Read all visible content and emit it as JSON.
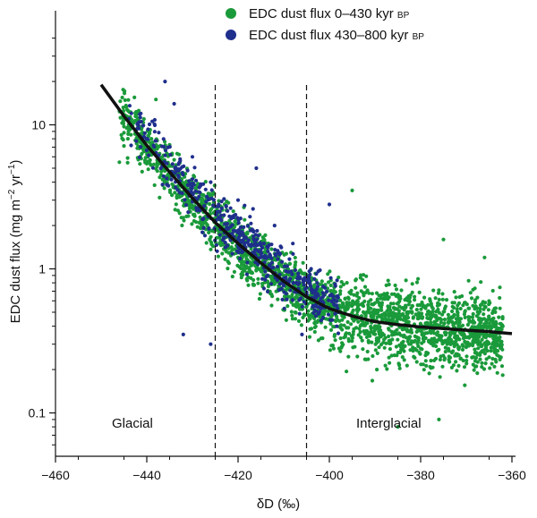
{
  "chart_data": {
    "type": "scatter",
    "xlabel_main": "δD",
    "xlabel_unit": "(‰)",
    "ylabel_main": "EDC dust flux (mg m",
    "ylabel_exp1": "−2",
    "ylabel_mid": " yr",
    "ylabel_exp2": "−1",
    "ylabel_end": ")",
    "xlim": [
      -460,
      -360
    ],
    "ylim": [
      0.05,
      50
    ],
    "yscale": "log",
    "xticks": [
      -460,
      -440,
      -420,
      -400,
      -380,
      -360
    ],
    "xtick_labels": [
      "−460",
      "−440",
      "−420",
      "−400",
      "−380",
      "−360"
    ],
    "yticks": [
      0.1,
      1,
      10
    ],
    "ytick_labels": [
      "0.1",
      "1",
      "10"
    ],
    "legend_position": "top-right",
    "series": [
      {
        "name": "EDC dust flux 0–430 kyr",
        "name_suffix": "BP",
        "color": "#1a9a3a",
        "x_range": [
          -446,
          -362
        ],
        "y_range": [
          0.07,
          20
        ],
        "count": 2400,
        "points": [
          [
            -446,
            5.5
          ],
          [
            -444,
            9
          ],
          [
            -442,
            12
          ],
          [
            -440,
            7
          ],
          [
            -438,
            15
          ],
          [
            -436,
            4
          ],
          [
            -432,
            3
          ],
          [
            -428,
            2
          ],
          [
            -424,
            1.5
          ],
          [
            -420,
            1.2
          ],
          [
            -412,
            0.9
          ],
          [
            -404,
            0.6
          ],
          [
            -396,
            0.55
          ],
          [
            -390,
            0.4
          ],
          [
            -384,
            0.3
          ],
          [
            -378,
            0.5
          ],
          [
            -372,
            0.25
          ],
          [
            -366,
            0.55
          ],
          [
            -362,
            0.4
          ],
          [
            -385,
            0.08
          ],
          [
            -376,
            0.09
          ],
          [
            -395,
            3.5
          ],
          [
            -375,
            1.6
          ],
          [
            -366,
            1.2
          ]
        ]
      },
      {
        "name": "EDC dust flux 430–800 kyr",
        "name_suffix": "BP",
        "color": "#1f2f8c",
        "x_range": [
          -444,
          -398
        ],
        "y_range": [
          0.25,
          20
        ],
        "count": 520,
        "points": [
          [
            -436,
            20
          ],
          [
            -434,
            14
          ],
          [
            -440,
            8
          ],
          [
            -430,
            6
          ],
          [
            -426,
            4
          ],
          [
            -420,
            3
          ],
          [
            -416,
            5
          ],
          [
            -412,
            2
          ],
          [
            -408,
            1.5
          ],
          [
            -404,
            1
          ],
          [
            -402,
            0.6
          ],
          [
            -400,
            2.8
          ],
          [
            -406,
            0.35
          ],
          [
            -426,
            0.3
          ],
          [
            -432,
            0.35
          ],
          [
            -398,
            0.5
          ]
        ]
      }
    ],
    "fit_curve": {
      "name": "fit",
      "color": "#111111",
      "x": [
        -450,
        -445,
        -440,
        -435,
        -430,
        -425,
        -420,
        -415,
        -410,
        -405,
        -400,
        -395,
        -390,
        -385,
        -380,
        -375,
        -370,
        -365,
        -360
      ],
      "y": [
        19,
        11.5,
        7.2,
        4.7,
        3.1,
        2.1,
        1.5,
        1.1,
        0.82,
        0.64,
        0.53,
        0.47,
        0.43,
        0.41,
        0.395,
        0.385,
        0.375,
        0.367,
        0.355
      ]
    },
    "vlines": [
      -425,
      -405
    ],
    "region_labels": [
      "Glacial",
      "Interglacial"
    ]
  }
}
